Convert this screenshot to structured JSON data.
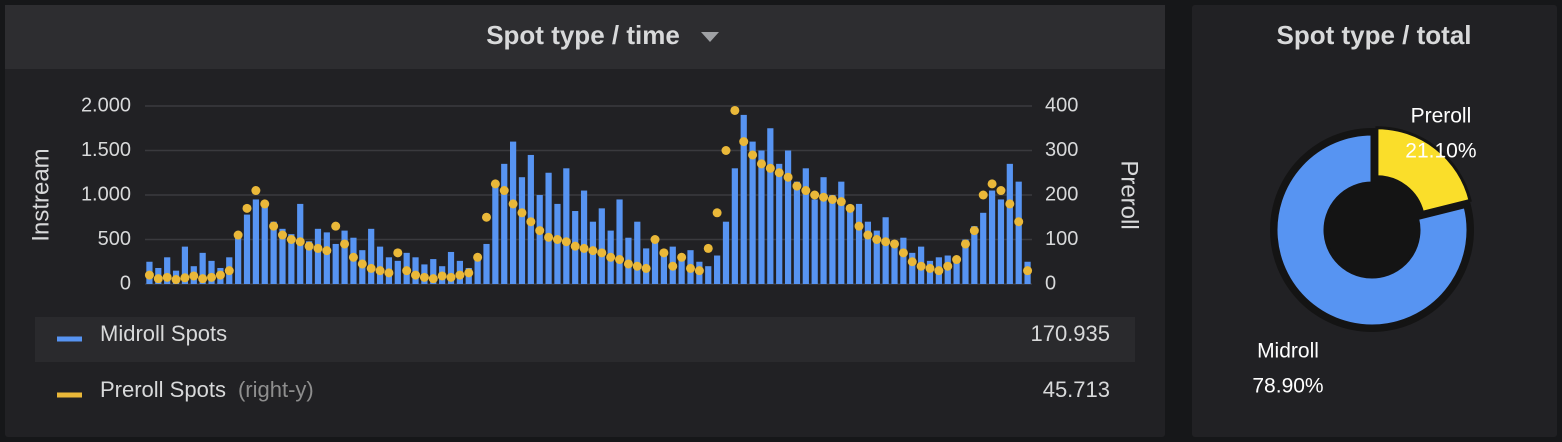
{
  "chart_data": [
    {
      "type": "bar",
      "title": "Spot type / time",
      "ylabel": "Instream",
      "y2label": "Preroll",
      "ylim": [
        0,
        2000
      ],
      "yticks": [
        0,
        500,
        {
          "value": 1000,
          "label": "1.000"
        },
        {
          "value": 1500,
          "label": "1.500"
        },
        {
          "value": 2000,
          "label": "2.000"
        }
      ],
      "y2lim": [
        0,
        400
      ],
      "y2ticks": [
        0,
        100,
        200,
        300,
        400
      ],
      "grid": true,
      "series": [
        {
          "name": "Midroll Spots",
          "type": "bar",
          "color": "#5794f2",
          "legend_total": "170.935",
          "values": [
            250,
            180,
            300,
            150,
            420,
            200,
            350,
            260,
            180,
            300,
            520,
            780,
            950,
            880,
            700,
            620,
            560,
            900,
            480,
            620,
            580,
            450,
            600,
            520,
            380,
            620,
            420,
            300,
            260,
            350,
            300,
            220,
            280,
            200,
            360,
            260,
            180,
            300,
            450,
            1150,
            1350,
            1600,
            1200,
            1450,
            1000,
            1250,
            900,
            1300,
            820,
            1050,
            700,
            850,
            600,
            950,
            520,
            700,
            400,
            480,
            320,
            420,
            300,
            380,
            250,
            200,
            320,
            700,
            1300,
            1900,
            1600,
            1500,
            1750,
            1350,
            1500,
            1150,
            1300,
            950,
            1200,
            1000,
            1150,
            820,
            900,
            700,
            600,
            750,
            480,
            520,
            350,
            420,
            260,
            300,
            320,
            280,
            500,
            650,
            800,
            1050,
            950,
            1350,
            1150,
            250
          ]
        },
        {
          "name": "Preroll Spots",
          "type": "scatter",
          "axis": "y2",
          "axis_note": "(right-y)",
          "color": "#eab839",
          "legend_total": "45.713",
          "values": [
            20,
            12,
            15,
            10,
            14,
            18,
            12,
            15,
            20,
            30,
            110,
            170,
            210,
            180,
            130,
            110,
            100,
            95,
            85,
            80,
            75,
            130,
            90,
            60,
            45,
            35,
            30,
            25,
            70,
            30,
            20,
            15,
            12,
            18,
            15,
            20,
            25,
            60,
            150,
            225,
            210,
            180,
            160,
            140,
            120,
            105,
            100,
            95,
            85,
            80,
            75,
            70,
            60,
            55,
            45,
            40,
            35,
            100,
            70,
            40,
            60,
            35,
            30,
            80,
            160,
            300,
            390,
            320,
            290,
            270,
            260,
            250,
            240,
            220,
            210,
            200,
            195,
            190,
            185,
            170,
            130,
            110,
            100,
            95,
            90,
            70,
            50,
            40,
            35,
            30,
            40,
            55,
            90,
            120,
            200,
            225,
            210,
            180,
            140,
            30
          ]
        }
      ]
    },
    {
      "type": "pie",
      "title": "Spot type / total",
      "donut": true,
      "categories": [
        "Midroll",
        "Preroll"
      ],
      "values": [
        78.9,
        21.1
      ],
      "value_labels": [
        "78.90%",
        "21.10%"
      ],
      "colors": [
        "#5794f2",
        "#fade2a"
      ]
    }
  ]
}
